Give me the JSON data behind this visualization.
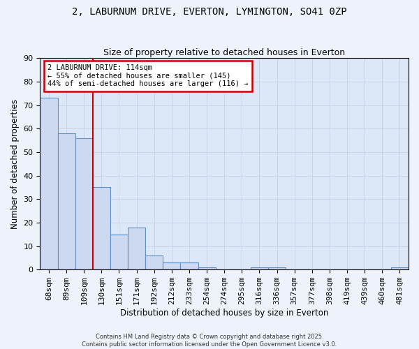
{
  "title1": "2, LABURNUM DRIVE, EVERTON, LYMINGTON, SO41 0ZP",
  "title2": "Size of property relative to detached houses in Everton",
  "xlabel": "Distribution of detached houses by size in Everton",
  "ylabel": "Number of detached properties",
  "bar_labels": [
    "68sqm",
    "89sqm",
    "109sqm",
    "130sqm",
    "151sqm",
    "171sqm",
    "192sqm",
    "212sqm",
    "233sqm",
    "254sqm",
    "274sqm",
    "295sqm",
    "316sqm",
    "336sqm",
    "357sqm",
    "377sqm",
    "398sqm",
    "419sqm",
    "439sqm",
    "460sqm",
    "481sqm"
  ],
  "bar_values": [
    73,
    58,
    56,
    35,
    15,
    18,
    6,
    3,
    3,
    1,
    0,
    0,
    1,
    1,
    0,
    0,
    0,
    0,
    0,
    0,
    1
  ],
  "bar_color": "#ccd9f0",
  "bar_edge_color": "#6090c8",
  "bar_edge_width": 0.8,
  "vline_x": 2.5,
  "vline_color": "#cc0000",
  "vline_linewidth": 1.5,
  "annotation_text": "2 LABURNUM DRIVE: 114sqm\n← 55% of detached houses are smaller (145)\n44% of semi-detached houses are larger (116) →",
  "annotation_box_color": "#ffffff",
  "annotation_box_edge_color": "#cc0000",
  "ylim": [
    0,
    90
  ],
  "yticks": [
    0,
    10,
    20,
    30,
    40,
    50,
    60,
    70,
    80,
    90
  ],
  "grid_color": "#c8d4e8",
  "background_color": "#dce8f8",
  "fig_background": "#eef2fa",
  "footer1": "Contains HM Land Registry data © Crown copyright and database right 2025.",
  "footer2": "Contains public sector information licensed under the Open Government Licence v3.0."
}
